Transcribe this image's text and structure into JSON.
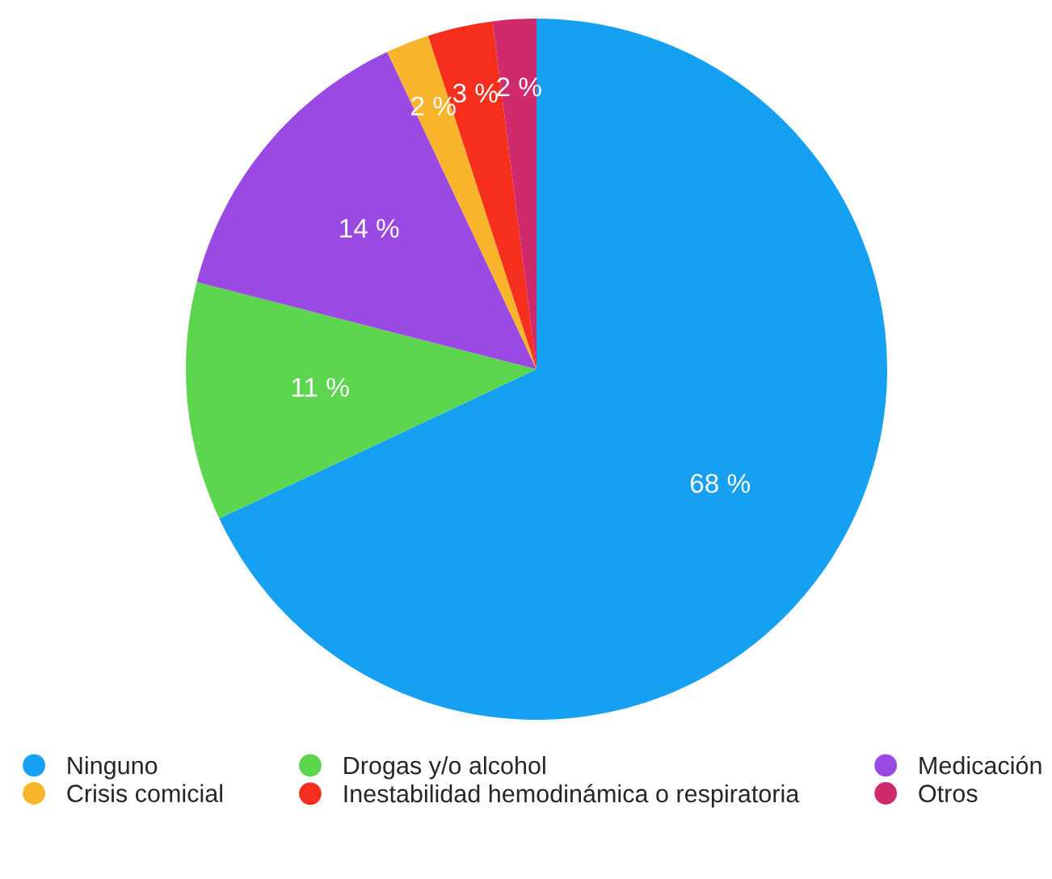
{
  "chart_data": {
    "type": "pie",
    "categories": [
      "Ninguno",
      "Drogas y/o alcohol",
      "Medicación",
      "Crisis comicial",
      "Inestabilidad hemodinámica o respiratoria",
      "Otros"
    ],
    "values": [
      68,
      11,
      14,
      2,
      3,
      2
    ],
    "colors": [
      "#16a0f2",
      "#5dd64f",
      "#9a4ae2",
      "#f8b42a",
      "#f52e1d",
      "#cf2a6b"
    ],
    "value_labels": [
      "68 %",
      "11 %",
      "14 %",
      "2 %",
      "3 %",
      "2 %"
    ],
    "legend": "bottom"
  }
}
